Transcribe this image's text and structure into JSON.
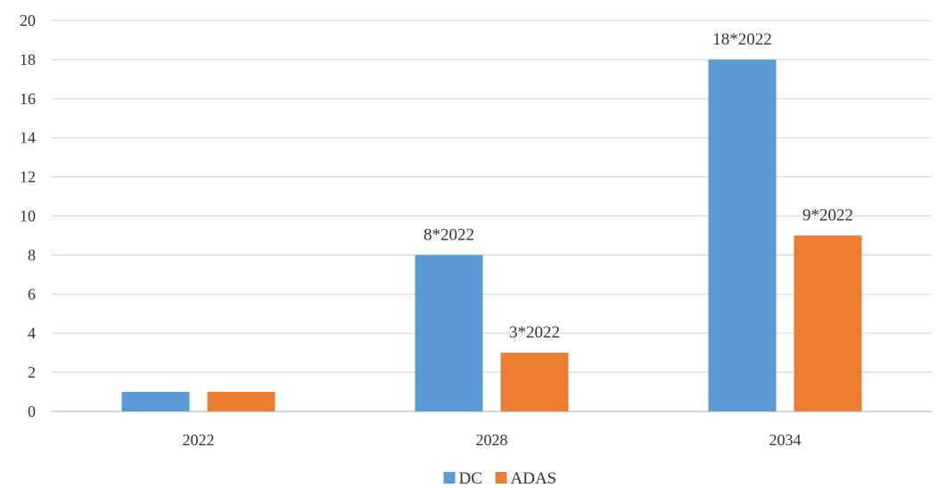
{
  "chart_data": {
    "type": "bar",
    "categories": [
      "2022",
      "2028",
      "2034"
    ],
    "series": [
      {
        "name": "DC",
        "color": "#5b9bd5",
        "values": [
          1,
          8,
          18
        ],
        "data_labels": [
          "",
          "8*2022",
          "18*2022"
        ]
      },
      {
        "name": "ADAS",
        "color": "#ed7d31",
        "values": [
          1,
          3,
          9
        ],
        "data_labels": [
          "",
          "3*2022",
          "9*2022"
        ]
      }
    ],
    "title": "",
    "xlabel": "",
    "ylabel": "",
    "ylim": [
      0,
      20
    ],
    "yticks": [
      "0",
      "2",
      "4",
      "6",
      "8",
      "10",
      "12",
      "14",
      "16",
      "18",
      "20"
    ],
    "grid": true,
    "legend_position": "bottom"
  }
}
